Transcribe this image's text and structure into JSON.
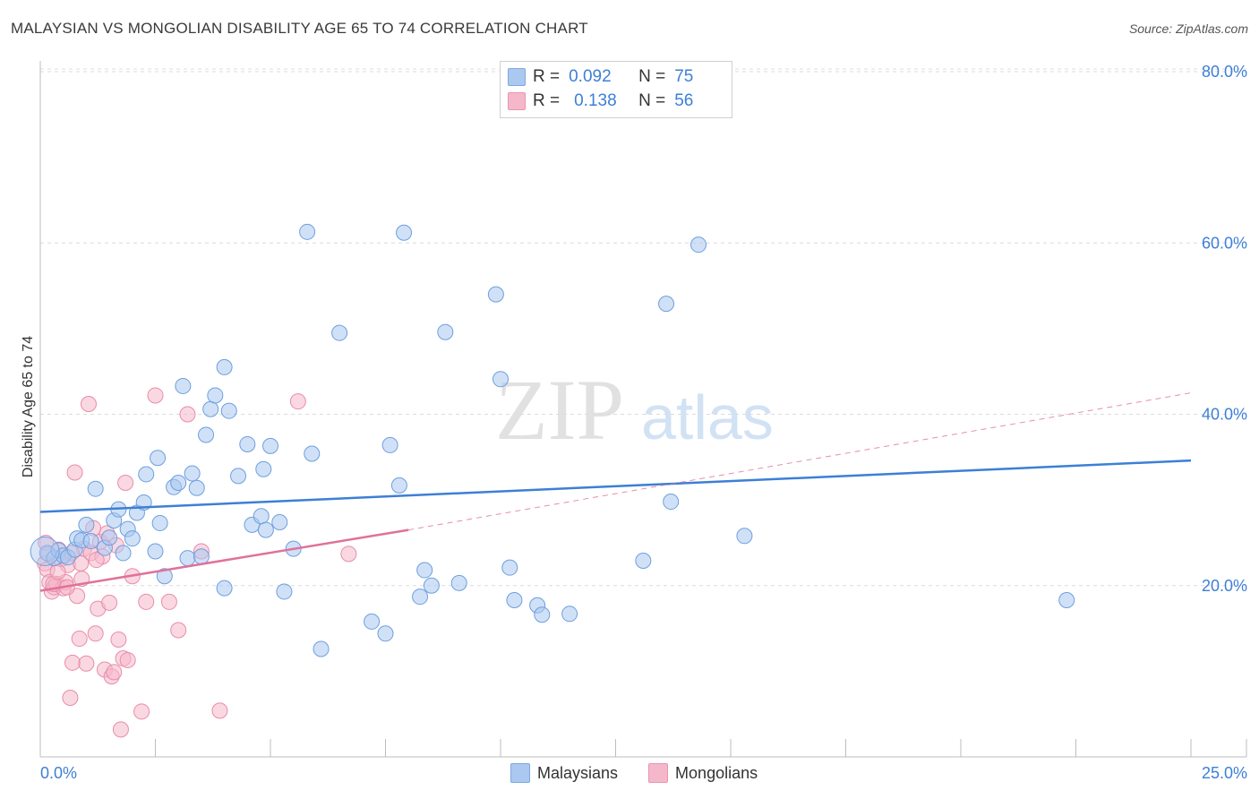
{
  "header": {
    "title": "MALAYSIAN VS MONGOLIAN DISABILITY AGE 65 TO 74 CORRELATION CHART",
    "source": "Source: ZipAtlas.com"
  },
  "watermark": {
    "zip": "ZIP",
    "atlas": "atlas"
  },
  "legend_top": {
    "rows": [
      {
        "r_label": "R =",
        "r_value": "0.092",
        "n_label": "N =",
        "n_value": "75",
        "color": "#aac8f0"
      },
      {
        "r_label": "R =",
        "r_value": "0.138",
        "n_label": "N =",
        "n_value": "56",
        "color": "#f5b8cb"
      }
    ]
  },
  "legend_bottom": {
    "items": [
      {
        "label": "Malaysians",
        "color": "#aac8f0"
      },
      {
        "label": "Mongolians",
        "color": "#f5b8cb"
      }
    ]
  },
  "chart_data": {
    "type": "scatter",
    "ylabel": "Disability Age 65 to 74",
    "xlim": [
      0,
      25
    ],
    "ylim": [
      0,
      80
    ],
    "x_tick_labels": [
      "0.0%",
      "25.0%"
    ],
    "y_tick_labels": [
      "20.0%",
      "40.0%",
      "60.0%",
      "80.0%"
    ],
    "y_ticks": [
      20,
      40,
      60,
      80
    ],
    "grid": true,
    "colors": {
      "blue": "#3d7fd6",
      "blue_fill": "#aac8f0",
      "pink": "#e0719a",
      "pink_fill": "#f5b8cb",
      "tick": "#3d7fd6"
    },
    "series": [
      {
        "name": "Malaysians",
        "points": [
          [
            0.15,
            23.8
          ],
          [
            0.3,
            23.2
          ],
          [
            0.4,
            24.1
          ],
          [
            0.5,
            23.5
          ],
          [
            0.6,
            23.3
          ],
          [
            0.75,
            24.2
          ],
          [
            0.8,
            25.5
          ],
          [
            0.9,
            25.3
          ],
          [
            1.0,
            27.1
          ],
          [
            1.1,
            25.2
          ],
          [
            1.2,
            31.3
          ],
          [
            1.4,
            24.4
          ],
          [
            1.5,
            25.6
          ],
          [
            1.6,
            27.6
          ],
          [
            1.7,
            28.9
          ],
          [
            1.8,
            23.8
          ],
          [
            1.9,
            26.6
          ],
          [
            2.0,
            25.5
          ],
          [
            2.1,
            28.5
          ],
          [
            2.25,
            29.7
          ],
          [
            2.3,
            33.0
          ],
          [
            2.5,
            24.0
          ],
          [
            2.55,
            34.9
          ],
          [
            2.6,
            27.3
          ],
          [
            2.7,
            21.1
          ],
          [
            2.9,
            31.5
          ],
          [
            3.0,
            32.0
          ],
          [
            3.1,
            43.3
          ],
          [
            3.2,
            23.2
          ],
          [
            3.3,
            33.1
          ],
          [
            3.4,
            31.4
          ],
          [
            3.5,
            23.4
          ],
          [
            3.6,
            37.6
          ],
          [
            3.7,
            40.6
          ],
          [
            3.8,
            42.2
          ],
          [
            4.0,
            19.7
          ],
          [
            4.1,
            40.4
          ],
          [
            4.0,
            45.5
          ],
          [
            4.3,
            32.8
          ],
          [
            4.5,
            36.5
          ],
          [
            4.6,
            27.1
          ],
          [
            4.8,
            28.1
          ],
          [
            4.85,
            33.6
          ],
          [
            4.9,
            26.5
          ],
          [
            5.0,
            36.3
          ],
          [
            5.2,
            27.4
          ],
          [
            5.3,
            19.3
          ],
          [
            5.5,
            24.3
          ],
          [
            5.8,
            61.3
          ],
          [
            5.9,
            35.4
          ],
          [
            6.1,
            12.6
          ],
          [
            6.5,
            49.5
          ],
          [
            7.2,
            15.8
          ],
          [
            7.5,
            14.4
          ],
          [
            7.6,
            36.4
          ],
          [
            7.8,
            31.7
          ],
          [
            7.9,
            61.2
          ],
          [
            8.25,
            18.7
          ],
          [
            8.35,
            21.8
          ],
          [
            8.5,
            20.0
          ],
          [
            8.8,
            49.6
          ],
          [
            9.1,
            20.3
          ],
          [
            9.9,
            54.0
          ],
          [
            10.0,
            44.1
          ],
          [
            10.2,
            22.1
          ],
          [
            10.3,
            18.3
          ],
          [
            10.8,
            17.7
          ],
          [
            10.9,
            16.6
          ],
          [
            11.5,
            16.7
          ],
          [
            13.1,
            22.9
          ],
          [
            13.6,
            52.9
          ],
          [
            13.7,
            29.8
          ],
          [
            14.3,
            59.8
          ],
          [
            15.3,
            25.8
          ],
          [
            22.3,
            18.3
          ]
        ]
      },
      {
        "name": "Mongolians",
        "points": [
          [
            0.1,
            22.6
          ],
          [
            0.15,
            21.9
          ],
          [
            0.2,
            20.4
          ],
          [
            0.25,
            19.3
          ],
          [
            0.3,
            19.8
          ],
          [
            0.35,
            20.2
          ],
          [
            0.4,
            24.2
          ],
          [
            0.45,
            23.1
          ],
          [
            0.5,
            19.7
          ],
          [
            0.55,
            20.4
          ],
          [
            0.6,
            22.4
          ],
          [
            0.65,
            6.9
          ],
          [
            0.7,
            11.0
          ],
          [
            0.75,
            33.2
          ],
          [
            0.8,
            18.8
          ],
          [
            0.85,
            13.8
          ],
          [
            0.9,
            20.8
          ],
          [
            0.95,
            24.3
          ],
          [
            1.0,
            10.9
          ],
          [
            1.05,
            41.2
          ],
          [
            1.1,
            23.8
          ],
          [
            1.15,
            26.7
          ],
          [
            1.2,
            14.4
          ],
          [
            1.25,
            17.3
          ],
          [
            1.3,
            25.1
          ],
          [
            1.35,
            23.4
          ],
          [
            1.4,
            10.2
          ],
          [
            1.45,
            26.1
          ],
          [
            1.5,
            18.0
          ],
          [
            1.55,
            9.4
          ],
          [
            1.6,
            9.9
          ],
          [
            1.65,
            24.7
          ],
          [
            1.7,
            13.7
          ],
          [
            1.75,
            3.2
          ],
          [
            1.8,
            11.5
          ],
          [
            1.85,
            32.0
          ],
          [
            1.9,
            11.3
          ],
          [
            2.0,
            21.1
          ],
          [
            2.2,
            5.3
          ],
          [
            2.3,
            18.1
          ],
          [
            2.5,
            42.2
          ],
          [
            2.8,
            18.1
          ],
          [
            3.0,
            14.8
          ],
          [
            3.2,
            40.0
          ],
          [
            3.5,
            24.0
          ],
          [
            3.9,
            5.4
          ],
          [
            5.6,
            41.5
          ],
          [
            6.7,
            23.7
          ],
          [
            0.12,
            25.0
          ],
          [
            0.18,
            23.7
          ],
          [
            0.28,
            20.2
          ],
          [
            0.38,
            21.6
          ],
          [
            0.58,
            19.8
          ],
          [
            0.68,
            23.8
          ],
          [
            0.88,
            22.6
          ],
          [
            1.22,
            23.0
          ]
        ]
      }
    ],
    "trendlines": [
      {
        "series": "Malaysians",
        "from": [
          0,
          28.6
        ],
        "to": [
          25,
          34.6
        ],
        "style": "solid"
      },
      {
        "series": "Mongolians",
        "from": [
          0,
          19.4
        ],
        "to": [
          8,
          26.5
        ],
        "style": "solid"
      },
      {
        "series": "Mongolians",
        "from": [
          8,
          26.5
        ],
        "to": [
          25,
          42.5
        ],
        "style": "dashed"
      }
    ]
  }
}
